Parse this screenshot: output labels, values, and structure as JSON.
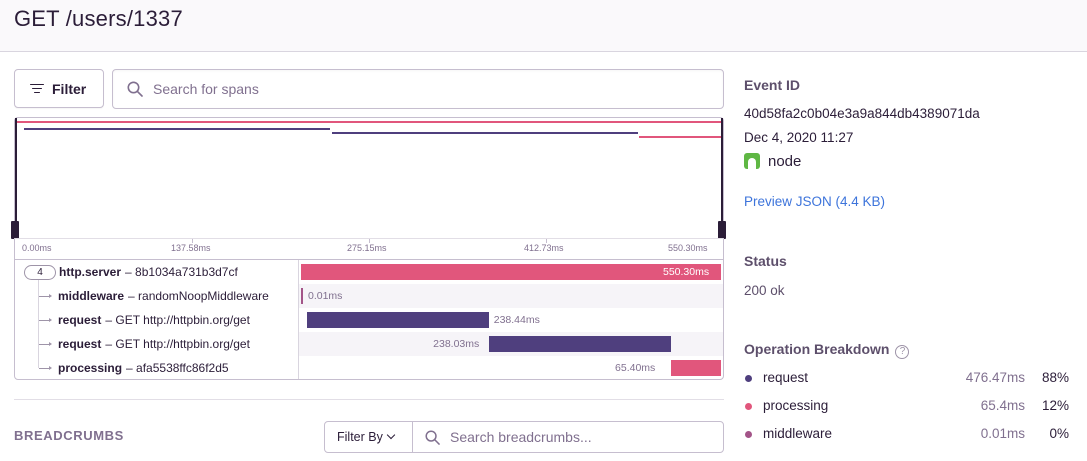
{
  "header": {
    "title": "GET /users/1337"
  },
  "toolbar": {
    "filter_label": "Filter",
    "search_placeholder": "Search for spans"
  },
  "ruler": {
    "ticks": [
      "0.00ms",
      "137.58ms",
      "275.15ms",
      "412.73ms",
      "550.30ms"
    ]
  },
  "spans": [
    {
      "count": "4",
      "op": "http.server",
      "desc": "8b1034a731b3d7cf",
      "duration": "550.30ms",
      "start_fraction": 0.0,
      "width_fraction": 1.0,
      "color": "#e1567c"
    },
    {
      "op": "middleware",
      "desc": "randomNoopMiddleware",
      "duration": "0.01ms",
      "start_fraction": 0.0,
      "width_fraction": 0.0,
      "color": "#a35488"
    },
    {
      "op": "request",
      "desc": "GET http://httpbin.org/get",
      "duration": "238.44ms",
      "start_fraction": 0.014,
      "width_fraction": 0.433,
      "color": "#4f3f7e"
    },
    {
      "op": "request",
      "desc": "GET http://httpbin.org/get",
      "duration": "238.03ms",
      "start_fraction": 0.448,
      "width_fraction": 0.432,
      "color": "#4f3f7e"
    },
    {
      "op": "processing",
      "desc": "afa5538ffc86f2d5",
      "duration": "65.40ms",
      "start_fraction": 0.881,
      "width_fraction": 0.119,
      "color": "#e1567c"
    }
  ],
  "breadcrumbs": {
    "title": "BREADCRUMBS",
    "filter_label": "Filter By",
    "search_placeholder": "Search breadcrumbs..."
  },
  "sidebar": {
    "event_id_label": "Event ID",
    "event_id": "40d58fa2c0b04e3a9a844db4389071da",
    "date": "Dec 4, 2020 11:27",
    "platform": "node",
    "preview_json": "Preview JSON (4.4 KB)",
    "status_label": "Status",
    "status_value": "200 ok",
    "breakdown_label": "Operation Breakdown",
    "breakdown": [
      {
        "name": "request",
        "ms": "476.47ms",
        "pct": "88%",
        "color": "#4f3f7e"
      },
      {
        "name": "processing",
        "ms": "65.4ms",
        "pct": "12%",
        "color": "#e1567c"
      },
      {
        "name": "middleware",
        "ms": "0.01ms",
        "pct": "0%",
        "color": "#a35488"
      }
    ]
  }
}
